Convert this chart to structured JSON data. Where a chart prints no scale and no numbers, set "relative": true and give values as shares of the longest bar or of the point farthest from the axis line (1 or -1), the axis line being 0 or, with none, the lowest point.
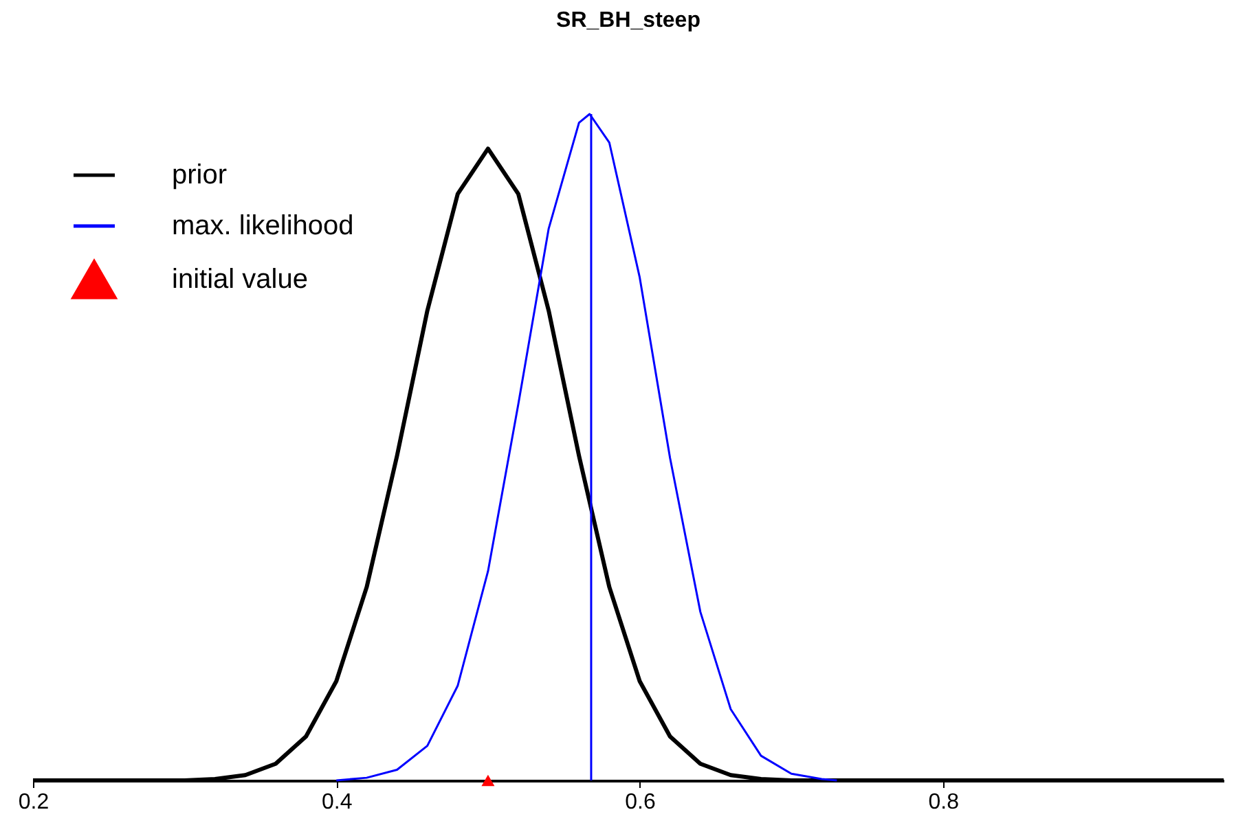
{
  "chart_data": {
    "type": "line",
    "title": "SR_BH_steep",
    "relative": true,
    "xlim": [
      0.2,
      0.985
    ],
    "xticks": [
      0.2,
      0.4,
      0.6,
      0.8
    ],
    "grid": false,
    "legend": "top left",
    "series": [
      {
        "name": "prior",
        "color": "#000000",
        "x": [
          0.2,
          0.3,
          0.32,
          0.34,
          0.36,
          0.38,
          0.4,
          0.42,
          0.44,
          0.46,
          0.48,
          0.5,
          0.52,
          0.54,
          0.56,
          0.58,
          0.6,
          0.62,
          0.64,
          0.66,
          0.68,
          0.7,
          0.985
        ],
        "values": [
          0,
          0,
          0.002,
          0.008,
          0.025,
          0.066,
          0.149,
          0.29,
          0.487,
          0.705,
          0.88,
          0.948,
          0.88,
          0.705,
          0.487,
          0.29,
          0.149,
          0.066,
          0.025,
          0.008,
          0.002,
          0,
          0
        ]
      },
      {
        "name": "max. likelihood",
        "color": "#0000ff",
        "x": [
          0.4,
          0.42,
          0.44,
          0.46,
          0.48,
          0.5,
          0.52,
          0.54,
          0.56,
          0.567,
          0.58,
          0.6,
          0.62,
          0.64,
          0.66,
          0.68,
          0.7,
          0.72,
          0.73
        ],
        "values": [
          0,
          0.004,
          0.016,
          0.052,
          0.142,
          0.314,
          0.565,
          0.828,
          0.987,
          1,
          0.957,
          0.755,
          0.484,
          0.253,
          0.107,
          0.037,
          0.01,
          0.002,
          0
        ]
      },
      {
        "name": "initial value",
        "type": "scatter",
        "marker": "triangle",
        "color": "#ff0000",
        "x": [
          0.5
        ],
        "values": [
          0
        ]
      }
    ],
    "ref_lines": [
      {
        "axis": "x",
        "value": 0.568,
        "color": "#0000ff"
      }
    ]
  }
}
